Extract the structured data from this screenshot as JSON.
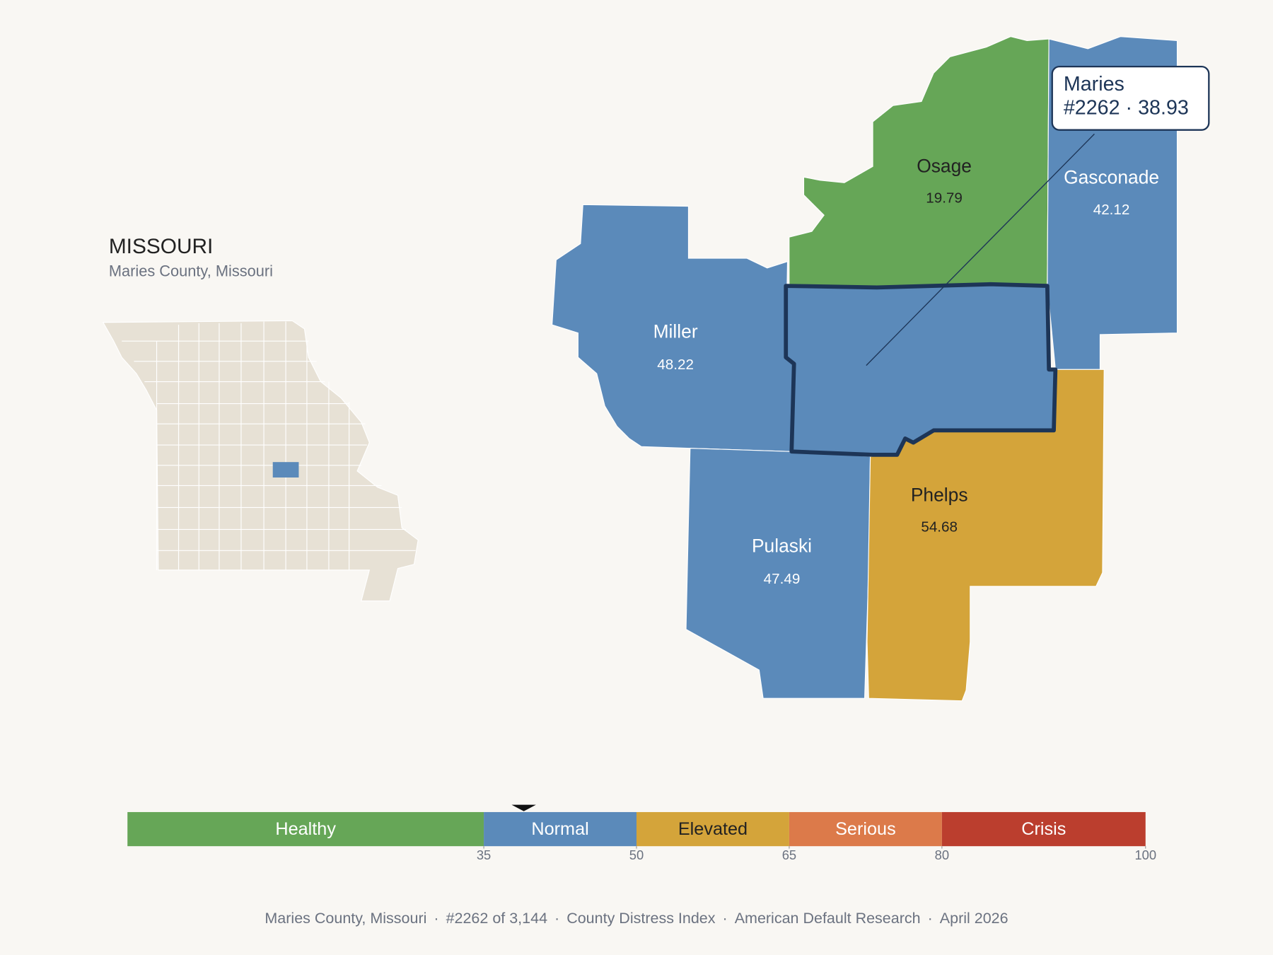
{
  "header": {
    "title": "MISSOURI",
    "subtitle": "Maries County, Missouri"
  },
  "counties": [
    {
      "name": "Osage",
      "score": 19.79
    },
    {
      "name": "Gasconade",
      "score": 42.12
    },
    {
      "name": "Miller",
      "score": 48.22
    },
    {
      "name": "Pulaski",
      "score": 47.49
    },
    {
      "name": "Phelps",
      "score": 54.68
    }
  ],
  "highlight": {
    "name": "Maries",
    "detail": "#2262 · 38.93",
    "score": 38.93
  },
  "scale": {
    "range": [
      0,
      100
    ],
    "ticks": [
      35,
      50,
      65,
      80,
      100
    ],
    "bands": [
      {
        "name": "Healthy",
        "color": "#66a657",
        "text_color": "#ffffff"
      },
      {
        "name": "Normal",
        "color": "#5b8aba",
        "text_color": "#ffffff"
      },
      {
        "name": "Elevated",
        "color": "#d4a43a",
        "text_color": "#222222"
      },
      {
        "name": "Serious",
        "color": "#dc7a4a",
        "text_color": "#ffffff"
      },
      {
        "name": "Crisis",
        "color": "#bb3e2e",
        "text_color": "#ffffff"
      }
    ]
  },
  "footer": [
    "Maries County, Missouri",
    "#2262 of 3,144",
    "County Distress Index",
    "American Default Research",
    "April 2026"
  ]
}
